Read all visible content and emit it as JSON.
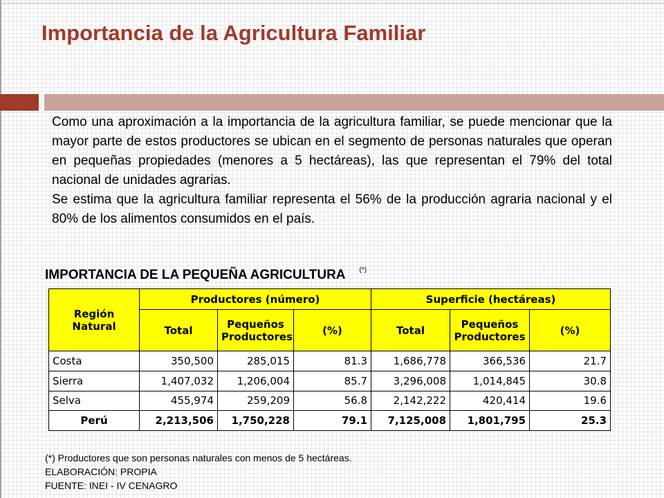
{
  "title": "Importancia de la Agricultura Familiar",
  "paragraphs": [
    "Como una aproximación a la importancia de la agricultura familiar, se puede mencionar que la mayor parte de estos productores se ubican en el segmento de personas naturales que operan en pequeñas propiedades (menores a 5 hectáreas), las que representan el 79% del total nacional de unidades agrarias.",
    "Se estima que la agricultura familiar representa el 56% de la producción agraria nacional y el 80% de los alimentos consumidos en el país."
  ],
  "table_title": "IMPORTANCIA DE LA PEQUEÑA AGRICULTURA",
  "table_title_note": "(*)",
  "table": {
    "header_region": "Región Natural",
    "group_productores": "Productores (número)",
    "group_superficie": "Superficie (hectáreas)",
    "col_total": "Total",
    "col_pequenos": "Pequeños Productores",
    "col_pct": "(%)",
    "rows": [
      {
        "region": "Costa",
        "prod_total": "350,500",
        "prod_peq": "285,015",
        "prod_pct": "81.3",
        "sup_total": "1,686,778",
        "sup_peq": "366,536",
        "sup_pct": "21.7"
      },
      {
        "region": "Sierra",
        "prod_total": "1,407,032",
        "prod_peq": "1,206,004",
        "prod_pct": "85.7",
        "sup_total": "3,296,008",
        "sup_peq": "1,014,845",
        "sup_pct": "30.8"
      },
      {
        "region": "Selva",
        "prod_total": "455,974",
        "prod_peq": "259,209",
        "prod_pct": "56.8",
        "sup_total": "2,142,222",
        "sup_peq": "420,414",
        "sup_pct": "19.6"
      },
      {
        "region": "Perú",
        "prod_total": "2,213,506",
        "prod_peq": "1,750,228",
        "prod_pct": "79.1",
        "sup_total": "7,125,008",
        "sup_peq": "1,801,795",
        "sup_pct": "25.3"
      }
    ]
  },
  "footnotes": [
    "(*) Productores que son personas naturales con menos de 5  hectáreas.",
    "ELABORACIÓN: PROPIA",
    "FUENTE: INEI - IV CENAGRO"
  ],
  "colors": {
    "title": "#a03a2a",
    "rule_dark": "#a03a2a",
    "rule_light": "#c9a39a",
    "table_header_bg": "#ffff00"
  }
}
